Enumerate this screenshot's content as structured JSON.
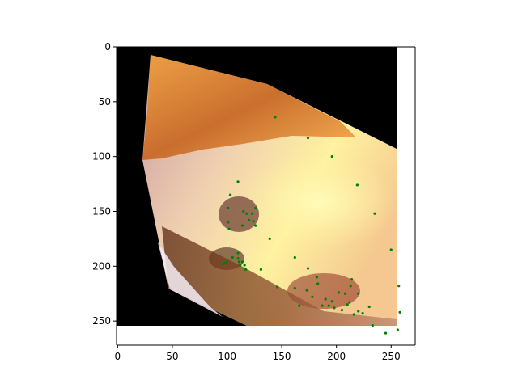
{
  "chart_data": {
    "type": "scatter",
    "title": "",
    "xlabel": "",
    "ylabel": "",
    "xlim": [
      -1,
      272
    ],
    "ylim": [
      272,
      0
    ],
    "x_ticks": [
      0,
      50,
      100,
      150,
      200,
      250
    ],
    "y_ticks": [
      0,
      50,
      100,
      150,
      200,
      250
    ],
    "background_image": {
      "description_colors": {
        "hair": "#e08a3a",
        "skin": "#f0c8a0",
        "shadow": "#5a2a10",
        "highlight": "#fff4a0"
      },
      "extent": [
        0,
        256,
        256,
        0
      ]
    },
    "series": [
      {
        "marker_color": "#008000",
        "points": [
          [
            144,
            64
          ],
          [
            174,
            83
          ],
          [
            196,
            100
          ],
          [
            219,
            126
          ],
          [
            110,
            123
          ],
          [
            103,
            135
          ],
          [
            126,
            147
          ],
          [
            101,
            147
          ],
          [
            115,
            150
          ],
          [
            118,
            152
          ],
          [
            123,
            152
          ],
          [
            120,
            158
          ],
          [
            124,
            159
          ],
          [
            126,
            163
          ],
          [
            114,
            163
          ],
          [
            101,
            160
          ],
          [
            102,
            166
          ],
          [
            139,
            175
          ],
          [
            110,
            188
          ],
          [
            105,
            192
          ],
          [
            110,
            193
          ],
          [
            111,
            196
          ],
          [
            114,
            196
          ],
          [
            116,
            199
          ],
          [
            112,
            199
          ],
          [
            98,
            197
          ],
          [
            100,
            196
          ],
          [
            96,
            198
          ],
          [
            117,
            203
          ],
          [
            131,
            203
          ],
          [
            162,
            192
          ],
          [
            174,
            202
          ],
          [
            182,
            210
          ],
          [
            183,
            216
          ],
          [
            146,
            219
          ],
          [
            162,
            220
          ],
          [
            173,
            222
          ],
          [
            178,
            228
          ],
          [
            190,
            230
          ],
          [
            196,
            232
          ],
          [
            202,
            224
          ],
          [
            208,
            225
          ],
          [
            213,
            218
          ],
          [
            214,
            212
          ],
          [
            220,
            225
          ],
          [
            187,
            236
          ],
          [
            193,
            236
          ],
          [
            198,
            238
          ],
          [
            205,
            240
          ],
          [
            210,
            235
          ],
          [
            212,
            233
          ],
          [
            220,
            241
          ],
          [
            224,
            243
          ],
          [
            230,
            237
          ],
          [
            216,
            244
          ],
          [
            166,
            236
          ],
          [
            235,
            152
          ],
          [
            250,
            185
          ],
          [
            257,
            218
          ],
          [
            258,
            242
          ],
          [
            256,
            258
          ],
          [
            245,
            261
          ],
          [
            233,
            254
          ]
        ]
      }
    ]
  }
}
